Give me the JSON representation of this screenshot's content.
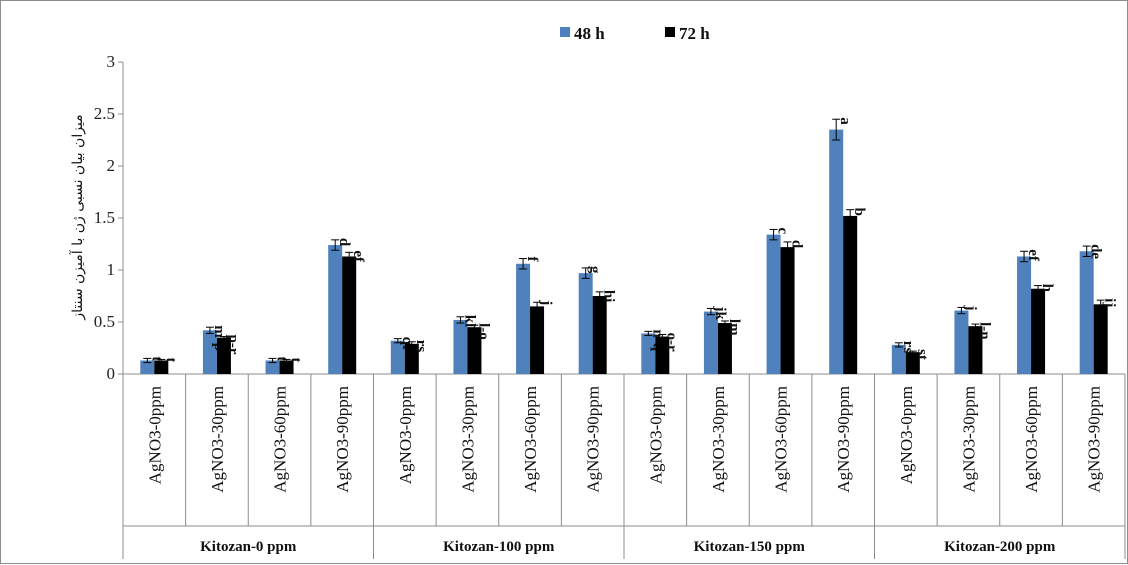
{
  "chart_data": {
    "type": "bar",
    "title": "",
    "ylabel": "میزان بیان نسبی ژن با آمیزن سنتاز",
    "ylim": [
      0,
      3
    ],
    "yticks": [
      "0",
      "0.5",
      "1",
      "1.5",
      "2",
      "2.5",
      "3"
    ],
    "grid": false,
    "legend_position": "top",
    "colors": {
      "48 h": "#4f81bd",
      "72 h": "#000000"
    },
    "groups": [
      {
        "label": "Kitozan-0 ppm",
        "categories": [
          "AgNO3-0ppm",
          "AgNO3-30ppm",
          "AgNO3-60ppm",
          "AgNO3-90ppm"
        ]
      },
      {
        "label": "Kitozan-100 ppm",
        "categories": [
          "AgNO3-0ppm",
          "AgNO3-30ppm",
          "AgNO3-60ppm",
          "AgNO3-90ppm"
        ]
      },
      {
        "label": "Kitozan-150 ppm",
        "categories": [
          "AgNO3-0ppm",
          "AgNO3-30ppm",
          "AgNO3-60ppm",
          "AgNO3-90ppm"
        ]
      },
      {
        "label": "Kitozan-200 ppm",
        "categories": [
          "AgNO3-0ppm",
          "AgNO3-30ppm",
          "AgNO3-60ppm",
          "AgNO3-90ppm"
        ]
      }
    ],
    "series": [
      {
        "name": "48 h",
        "values": [
          0.13,
          0.42,
          0.13,
          1.24,
          0.32,
          0.52,
          1.06,
          0.97,
          0.39,
          0.6,
          1.34,
          2.35,
          0.28,
          0.61,
          1.13,
          1.18
        ],
        "errors": [
          0.02,
          0.03,
          0.02,
          0.05,
          0.02,
          0.03,
          0.05,
          0.05,
          0.02,
          0.03,
          0.05,
          0.1,
          0.02,
          0.03,
          0.05,
          0.05
        ],
        "sig_labels": [
          "t",
          "m-p",
          "t",
          "d",
          "qr",
          "kl",
          "f",
          "g",
          "n-q",
          "jk",
          "c",
          "a",
          "rs",
          "j",
          "ef",
          "de"
        ]
      },
      {
        "name": "72 h",
        "values": [
          0.13,
          0.35,
          0.13,
          1.13,
          0.29,
          0.45,
          0.65,
          0.75,
          0.36,
          0.49,
          1.22,
          1.52,
          0.21,
          0.46,
          0.82,
          0.67
        ],
        "errors": [
          0.01,
          0.01,
          0.01,
          0.04,
          0.02,
          0.02,
          0.04,
          0.04,
          0.02,
          0.02,
          0.05,
          0.06,
          0.01,
          0.02,
          0.03,
          0.04
        ],
        "sig_labels": [
          "t",
          "p-r",
          "t",
          "ef",
          "rs",
          "l-o",
          "j",
          "hi",
          "o-r",
          "lm",
          "d",
          "b",
          "st",
          "l-n",
          "h",
          "ij"
        ]
      }
    ]
  }
}
